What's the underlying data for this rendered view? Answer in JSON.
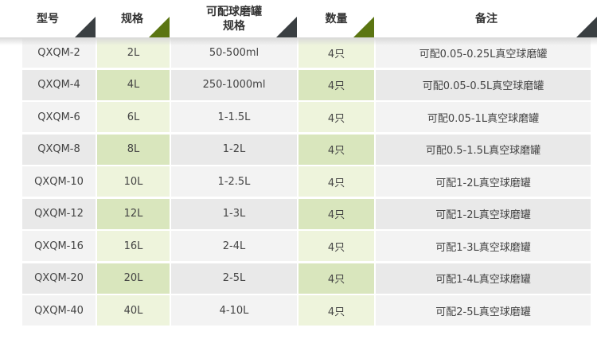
{
  "header": {
    "columns": [
      "型号",
      "规格",
      "可配球磨罐规格",
      "数量",
      "备注"
    ],
    "col2_line1": "可配球磨罐",
    "col2_line2": "规格"
  },
  "colors": {
    "accent_green": "#5b7512",
    "accent_dark": "#3a3f42",
    "green_cell_light": "#eef4dc",
    "green_cell_dark": "#d9e6bd"
  },
  "rows": [
    {
      "model": "QXQM-2",
      "spec": "2L",
      "jar": "50-500ml",
      "qty": "4只",
      "note": "可配0.05-0.25L真空球磨罐"
    },
    {
      "model": "QXQM-4",
      "spec": "4L",
      "jar": "250-1000ml",
      "qty": "4只",
      "note": "可配0.05-0.5L真空球磨罐"
    },
    {
      "model": "QXQM-6",
      "spec": "6L",
      "jar": "1-1.5L",
      "qty": "4只",
      "note": "可配0.05-1L真空球磨罐"
    },
    {
      "model": "QXQM-8",
      "spec": "8L",
      "jar": "1-2L",
      "qty": "4只",
      "note": "可配0.5-1.5L真空球磨罐"
    },
    {
      "model": "QXQM-10",
      "spec": "10L",
      "jar": "1-2.5L",
      "qty": "4只",
      "note": "可配1-2L真空球磨罐"
    },
    {
      "model": "QXQM-12",
      "spec": "12L",
      "jar": "1-3L",
      "qty": "4只",
      "note": "可配1-2L真空球磨罐"
    },
    {
      "model": "QXQM-16",
      "spec": "16L",
      "jar": "2-4L",
      "qty": "4只",
      "note": "可配1-3L真空球磨罐"
    },
    {
      "model": "QXQM-20",
      "spec": "20L",
      "jar": "2-5L",
      "qty": "4只",
      "note": "可配1-4L真空球磨罐"
    },
    {
      "model": "QXQM-40",
      "spec": "40L",
      "jar": "4-10L",
      "qty": "4只",
      "note": "可配2-5L真空球磨罐"
    }
  ]
}
